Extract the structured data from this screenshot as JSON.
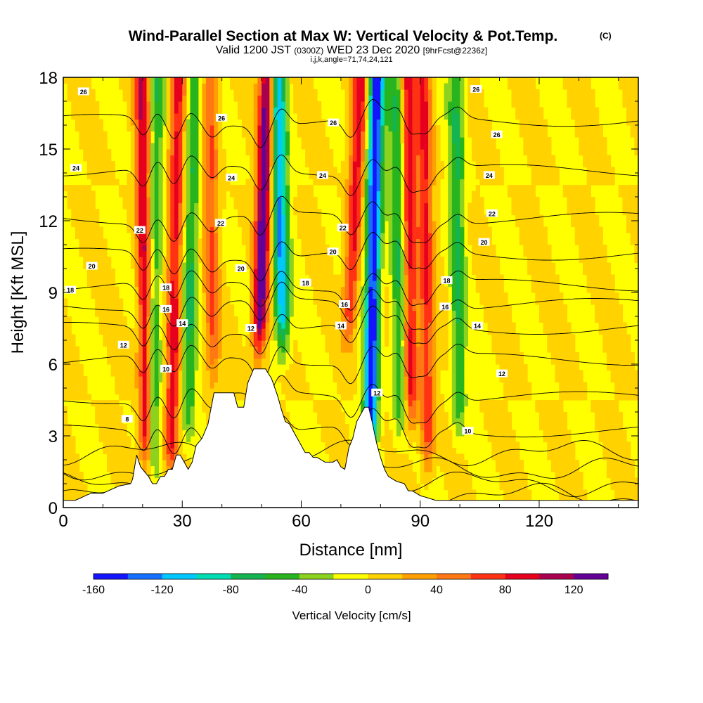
{
  "chart_data": {
    "type": "heatmap",
    "title": "Wind-Parallel Section at Max W: Vertical Velocity & Pot.Temp.",
    "title_mark": "(C)",
    "subtitle_prefix": "Valid 1200 JST ",
    "subtitle_utc": "(0300Z)",
    "subtitle_date": " WED 23 Dec 2020 ",
    "subtitle_fcst": "[9hrFcst@2236z]",
    "subtitle_line2": "i,j,k,angle=71,74,24,121",
    "xlabel": "Distance [nm]",
    "ylabel": "Height [Kft MSL]",
    "xlim": [
      0,
      145
    ],
    "ylim": [
      0,
      18
    ],
    "x_ticks": [
      0,
      30,
      60,
      90,
      120
    ],
    "y_ticks": [
      0,
      3,
      6,
      9,
      12,
      15,
      18
    ],
    "grid": false,
    "colorbar": {
      "title": "Vertical Velocity [cm/s]",
      "placement": "bottom",
      "range": [
        -160,
        140
      ],
      "tick_values": [
        -160,
        -120,
        -80,
        -40,
        0,
        40,
        80,
        120
      ],
      "colors": [
        "#1414ff",
        "#1470ff",
        "#00c8ff",
        "#00dcb4",
        "#14b450",
        "#28b41e",
        "#8cd21e",
        "#ffff00",
        "#ffd200",
        "#ffa000",
        "#ff7814",
        "#ff3214",
        "#e6001e",
        "#aa0050",
        "#640096"
      ]
    },
    "terrain_profile": {
      "x": [
        0,
        3,
        7,
        10,
        14,
        17,
        17.5,
        18.5,
        19.5,
        20.5,
        21.5,
        22.5,
        23.5,
        24.5,
        25.5,
        26.5,
        27.5,
        28.5,
        29.5,
        30.5,
        31.5,
        32.5,
        33.5,
        35,
        36.5,
        38,
        41,
        43,
        44,
        45.5,
        46.5,
        48,
        49,
        51,
        52.5,
        54,
        55,
        56,
        57,
        58,
        59,
        60,
        61,
        62,
        63,
        64,
        65,
        66,
        67,
        68,
        69,
        70,
        71,
        72,
        73,
        74,
        75,
        76,
        77,
        78,
        79,
        80,
        81,
        82,
        84,
        86,
        87,
        88,
        90,
        92,
        94,
        96,
        98,
        100
      ],
      "height": [
        0.3,
        0.3,
        0.6,
        0.6,
        0.9,
        1.0,
        1.2,
        2.2,
        1.7,
        1.5,
        1.3,
        1.0,
        1.0,
        1.3,
        1.3,
        1.6,
        1.6,
        2.2,
        2.2,
        1.9,
        1.6,
        1.9,
        2.6,
        2.9,
        3.5,
        4.8,
        4.8,
        4.8,
        4.2,
        4.2,
        5.2,
        5.8,
        5.8,
        5.8,
        5.4,
        4.7,
        4.1,
        3.6,
        3.5,
        3.2,
        2.9,
        2.6,
        2.3,
        2.3,
        2.1,
        2.1,
        2.0,
        1.9,
        1.9,
        1.9,
        2.0,
        1.7,
        1.6,
        2.5,
        2.9,
        3.6,
        3.9,
        4.2,
        4.2,
        3.5,
        2.7,
        2.1,
        1.6,
        1.3,
        1.1,
        1.0,
        0.7,
        0.7,
        0.5,
        0.4,
        0.3,
        0.3,
        0.3,
        0.3
      ]
    },
    "updraft_bands": [
      {
        "x_top": 20,
        "x_bottom": 21,
        "z_base": 1,
        "w_max": 100
      },
      {
        "x_top": 29,
        "x_bottom": 27,
        "z_base": 1,
        "w_max": 90
      },
      {
        "x_top": 37,
        "x_bottom": 38,
        "z_base": 4.5,
        "w_max": 60
      },
      {
        "x_top": 51.5,
        "x_bottom": 48,
        "z_base": 5.8,
        "w_max": 140
      },
      {
        "x_top": 75,
        "x_bottom": 70,
        "z_base": 6.5,
        "w_max": 90
      },
      {
        "x_top": 87,
        "x_bottom": 88,
        "z_base": 3,
        "w_max": 90
      },
      {
        "x_top": 91,
        "x_bottom": 92,
        "z_base": 1,
        "w_max": 80
      }
    ],
    "downdraft_bands": [
      {
        "x_top": 23.5,
        "x_bottom": 22.5,
        "z_base": 1,
        "w_min": -60
      },
      {
        "x_top": 33,
        "x_bottom": 31,
        "z_base": 2.5,
        "w_min": -60
      },
      {
        "x_top": 54,
        "x_bottom": 56,
        "z_base": 6,
        "w_min": -120
      },
      {
        "x_top": 79,
        "x_bottom": 77,
        "z_base": 1.5,
        "w_min": -160
      },
      {
        "x_top": 84,
        "x_bottom": 85,
        "z_base": 2.5,
        "w_min": -60
      },
      {
        "x_top": 99,
        "x_bottom": 100,
        "z_base": 2.5,
        "w_min": -60
      }
    ],
    "isentrope_values": [
      8,
      10,
      12,
      14,
      16,
      18,
      20,
      22,
      24,
      26
    ],
    "contour_labels": [
      {
        "x": 1.8,
        "z": 9.1,
        "text": "18"
      },
      {
        "x": 5.1,
        "z": 17.4,
        "text": "26"
      },
      {
        "x": 3.2,
        "z": 14.2,
        "text": "24"
      },
      {
        "x": 7.2,
        "z": 10.1,
        "text": "20"
      },
      {
        "x": 15.2,
        "z": 6.8,
        "text": "12"
      },
      {
        "x": 16.1,
        "z": 3.7,
        "text": "8"
      },
      {
        "x": 19.3,
        "z": 11.6,
        "text": "22"
      },
      {
        "x": 25.9,
        "z": 9.2,
        "text": "18"
      },
      {
        "x": 25.9,
        "z": 8.3,
        "text": "16"
      },
      {
        "x": 25.9,
        "z": 5.8,
        "text": "10"
      },
      {
        "x": 30.0,
        "z": 7.7,
        "text": "14"
      },
      {
        "x": 39.7,
        "z": 11.9,
        "text": "22"
      },
      {
        "x": 39.9,
        "z": 16.3,
        "text": "26"
      },
      {
        "x": 42.4,
        "z": 13.8,
        "text": "24"
      },
      {
        "x": 44.8,
        "z": 10.0,
        "text": "20"
      },
      {
        "x": 47.3,
        "z": 7.5,
        "text": "12"
      },
      {
        "x": 61.1,
        "z": 9.4,
        "text": "18"
      },
      {
        "x": 65.4,
        "z": 13.9,
        "text": "24"
      },
      {
        "x": 68.1,
        "z": 16.1,
        "text": "26"
      },
      {
        "x": 68.0,
        "z": 10.7,
        "text": "20"
      },
      {
        "x": 70.5,
        "z": 11.7,
        "text": "22"
      },
      {
        "x": 70.9,
        "z": 8.5,
        "text": "16"
      },
      {
        "x": 70.0,
        "z": 7.6,
        "text": "14"
      },
      {
        "x": 79.1,
        "z": 4.8,
        "text": "12"
      },
      {
        "x": 104.1,
        "z": 17.5,
        "text": "26"
      },
      {
        "x": 109.3,
        "z": 15.6,
        "text": "26"
      },
      {
        "x": 107.4,
        "z": 13.9,
        "text": "24"
      },
      {
        "x": 108.1,
        "z": 12.3,
        "text": "22"
      },
      {
        "x": 106.1,
        "z": 11.1,
        "text": "20"
      },
      {
        "x": 96.7,
        "z": 9.5,
        "text": "18"
      },
      {
        "x": 96.3,
        "z": 8.4,
        "text": "16"
      },
      {
        "x": 104.4,
        "z": 7.6,
        "text": "14"
      },
      {
        "x": 110.6,
        "z": 5.6,
        "text": "12"
      },
      {
        "x": 102.0,
        "z": 3.2,
        "text": "10"
      }
    ]
  }
}
